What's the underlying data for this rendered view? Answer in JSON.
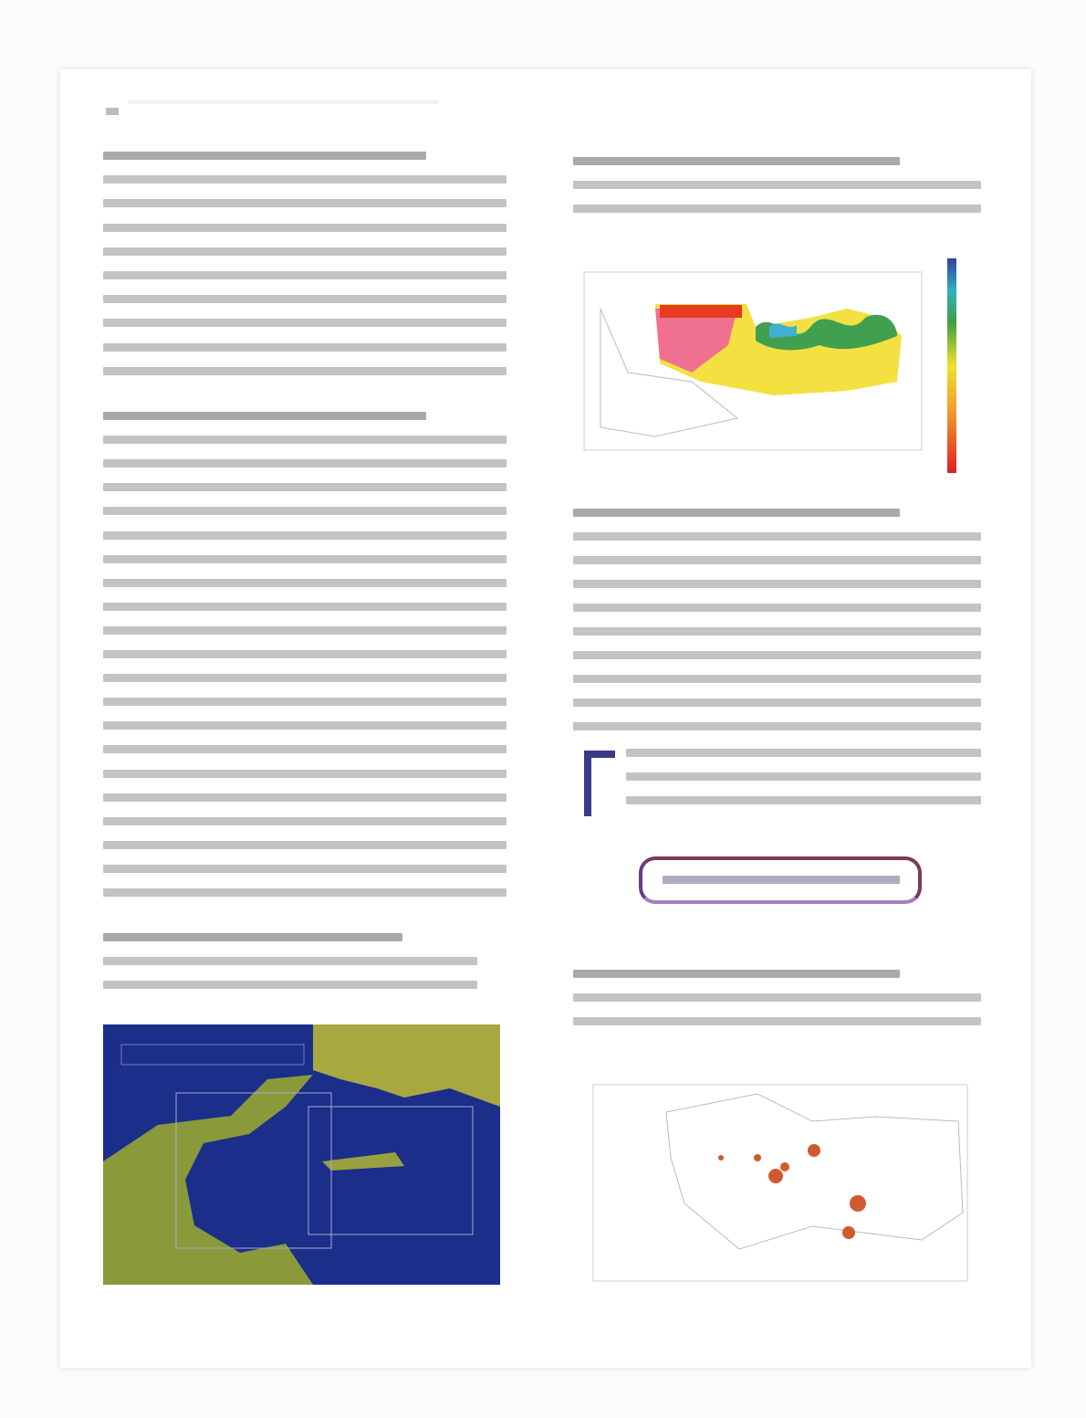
{
  "colors": {
    "drop_cap": "#3a3a8a",
    "callout_border": "#7a3a5a",
    "sea": "#1a2e8a",
    "land": "#9aa03a",
    "heat_high": "#e8e020",
    "heat_low": "#e83020",
    "heat_mid": "#30a040",
    "scatter_points": "#d05a30"
  },
  "icons": [
    "drop-cap-bracket"
  ]
}
